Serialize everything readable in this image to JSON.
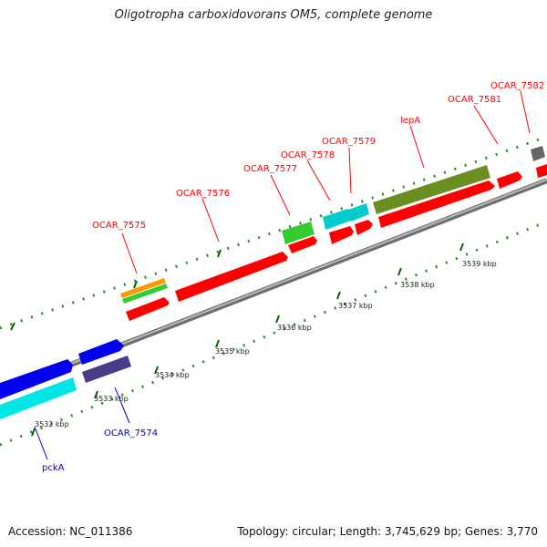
{
  "title": "Oligotropha carboxidovorans OM5, complete genome",
  "footer": {
    "accession": "Accession: NC_011386",
    "summary": "Topology: circular; Length: 3,745,629 bp; Genes: 3,770"
  },
  "scale_labels": [
    "3532 kbp",
    "3533 kbp",
    "3534 kbp",
    "3535 kbp",
    "3536 kbp",
    "3537 kbp",
    "3538 kbp",
    "3539 kbp"
  ],
  "gene_labels_top": [
    "OCAR_7575",
    "OCAR_7576",
    "OCAR_7577",
    "OCAR_7578",
    "OCAR_7579",
    "lepA",
    "OCAR_7581",
    "OCAR_7582"
  ],
  "gene_labels_bottom": [
    "OCAR_7574",
    "pckA"
  ],
  "colors": {
    "label_top": "#ff0000",
    "label_bottom": "#0000cc",
    "red_gene": "#ff0000",
    "olive_gene": "#6b8e23",
    "cyan_gene": "#00cccc",
    "green_gene": "#33cc33",
    "orange_gene": "#ff9900",
    "blue_gene": "#0000ee",
    "slate_gene": "#483d8b",
    "grey_gene": "#666666",
    "backbone": "#999999",
    "tick": "#006400"
  }
}
